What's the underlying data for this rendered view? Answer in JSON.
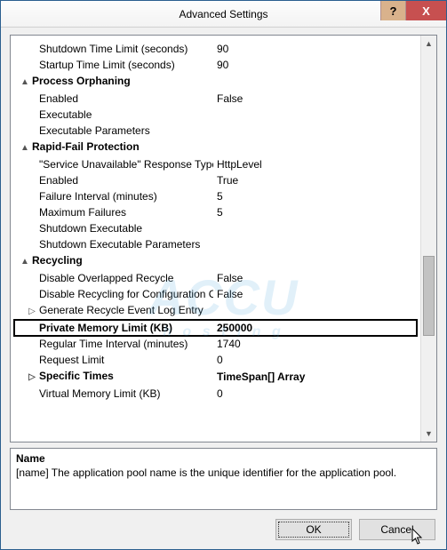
{
  "window": {
    "title": "Advanced Settings"
  },
  "rows": [
    {
      "indent": 1,
      "label": "Shutdown Time Limit (seconds)",
      "value": "90"
    },
    {
      "indent": 1,
      "label": "Startup Time Limit (seconds)",
      "value": "90"
    },
    {
      "indent": 0,
      "section": true,
      "exp": "▲",
      "label": "Process Orphaning"
    },
    {
      "indent": 1,
      "label": "Enabled",
      "value": "False"
    },
    {
      "indent": 1,
      "label": "Executable",
      "value": ""
    },
    {
      "indent": 1,
      "label": "Executable Parameters",
      "value": ""
    },
    {
      "indent": 0,
      "section": true,
      "exp": "▲",
      "label": "Rapid-Fail Protection"
    },
    {
      "indent": 1,
      "label": "\"Service Unavailable\" Response Type",
      "value": "HttpLevel"
    },
    {
      "indent": 1,
      "label": "Enabled",
      "value": "True"
    },
    {
      "indent": 1,
      "label": "Failure Interval (minutes)",
      "value": "5"
    },
    {
      "indent": 1,
      "label": "Maximum Failures",
      "value": "5"
    },
    {
      "indent": 1,
      "label": "Shutdown Executable",
      "value": ""
    },
    {
      "indent": 1,
      "label": "Shutdown Executable Parameters",
      "value": ""
    },
    {
      "indent": 0,
      "section": true,
      "exp": "▲",
      "label": "Recycling"
    },
    {
      "indent": 1,
      "label": "Disable Overlapped Recycle",
      "value": "False"
    },
    {
      "indent": 1,
      "label": "Disable Recycling for Configuration C",
      "value": "False"
    },
    {
      "indent": 1,
      "exp": "▷",
      "label": "Generate Recycle Event Log Entry",
      "value": ""
    },
    {
      "indent": 1,
      "label": "Private Memory Limit (KB)",
      "value": "250000",
      "boxed": true,
      "bold": true
    },
    {
      "indent": 1,
      "label": "Regular Time Interval (minutes)",
      "value": "1740"
    },
    {
      "indent": 1,
      "label": "Request Limit",
      "value": "0"
    },
    {
      "indent": 1,
      "exp": "▷",
      "label": "Specific Times",
      "value": "TimeSpan[] Array",
      "bold": true
    },
    {
      "indent": 1,
      "label": "Virtual Memory Limit (KB)",
      "value": "0"
    }
  ],
  "description": {
    "title": "Name",
    "body": "[name] The application pool name is the unique identifier for the application pool."
  },
  "buttons": {
    "ok": "OK",
    "cancel": "Cancel"
  },
  "titlebar": {
    "help": "?",
    "close": "X"
  }
}
